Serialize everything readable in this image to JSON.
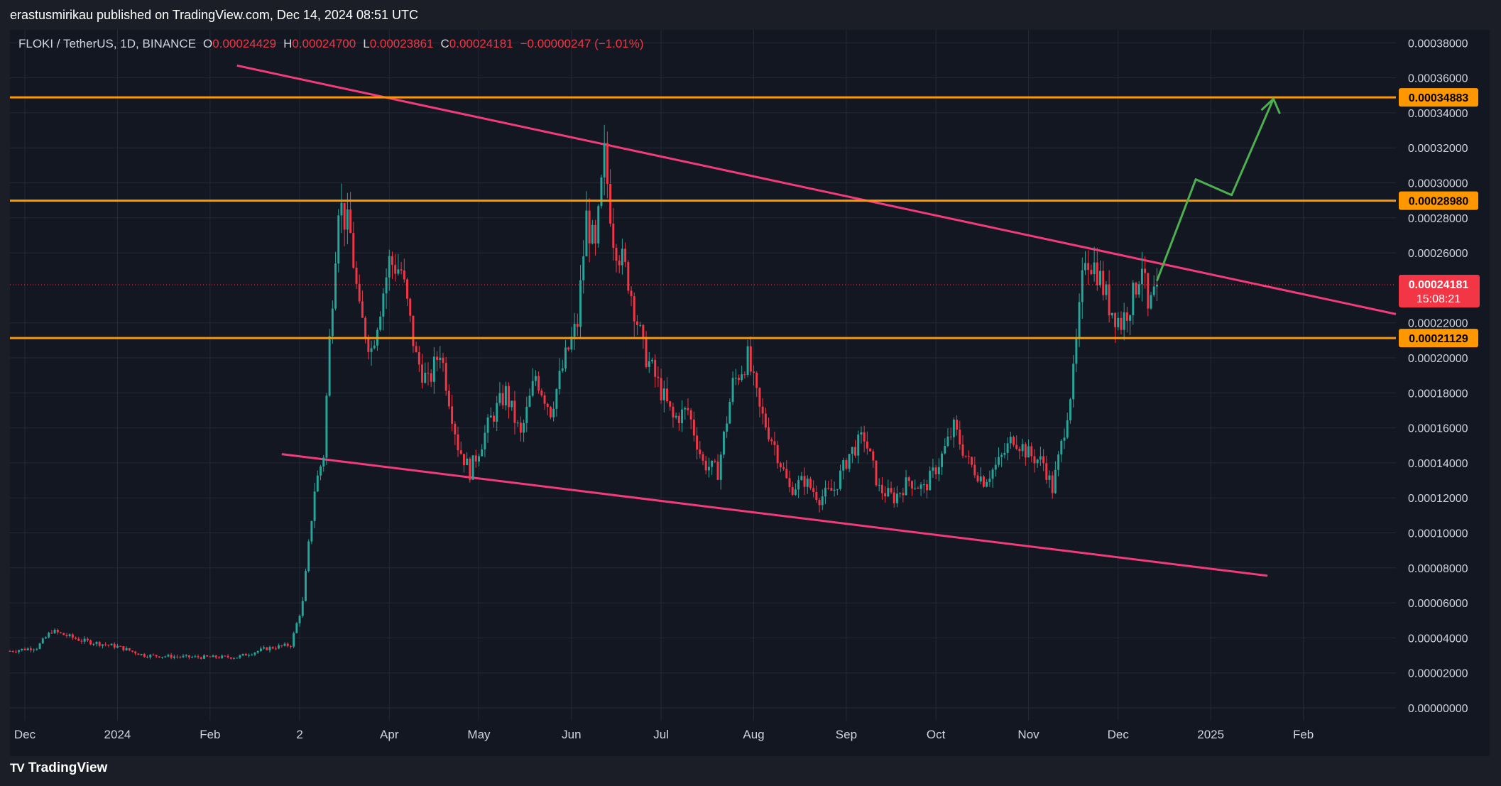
{
  "publisher_line": "erastusmirikau published on TradingView.com, Dec 14, 2024 08:51 UTC",
  "legend": {
    "symbol": "FLOKI / TetherUS, 1D, BINANCE",
    "open_label": "O",
    "open_value": "0.00024429",
    "high_label": "H",
    "high_value": "0.00024700",
    "low_label": "L",
    "low_value": "0.00023861",
    "close_label": "C",
    "close_value": "0.00024181",
    "change": "−0.00000247 (−1.01%)"
  },
  "footer": {
    "brand_mark": "TV",
    "brand_name": "TradingView"
  },
  "colors": {
    "background": "#131722",
    "frame": "#1b1e27",
    "grid": "#242936",
    "up": "#26a69a",
    "down": "#f23645",
    "trendline": "#f23b7a",
    "level": "#ff9800",
    "projection": "#4caf50",
    "axis_text": "#d1d4dc",
    "price_label_bg": "#f23645"
  },
  "chart_data": {
    "type": "candlestick",
    "title": "FLOKI / TetherUS, 1D, BINANCE",
    "y_axis": {
      "range": [
        0.0,
        0.00039
      ],
      "tick_labels": [
        "0.00038000",
        "0.00036000",
        "0.00034000",
        "0.00032000",
        "0.00030000",
        "0.00028000",
        "0.00026000",
        "0.00022000",
        "0.00020000",
        "0.00018000",
        "0.00016000",
        "0.00014000",
        "0.00012000",
        "0.00010000",
        "0.00008000",
        "0.00006000",
        "0.00004000",
        "0.00002000",
        "0.00000000"
      ],
      "tick_values": [
        0.00038,
        0.00036,
        0.00034,
        0.00032,
        0.0003,
        0.00028,
        0.00026,
        0.00022,
        0.0002,
        0.00018,
        0.00016,
        0.00014,
        0.00012,
        0.0001,
        8e-05,
        6e-05,
        4e-05,
        2e-05,
        0.0
      ]
    },
    "x_axis": {
      "range": [
        "2023-11-26",
        "2025-03-04"
      ],
      "ticks": [
        {
          "label": "Dec",
          "date": "2023-12-01"
        },
        {
          "label": "2024",
          "date": "2024-01-01"
        },
        {
          "label": "Feb",
          "date": "2024-02-01"
        },
        {
          "label": "2",
          "date": "2024-03-02"
        },
        {
          "label": "Apr",
          "date": "2024-04-01"
        },
        {
          "label": "May",
          "date": "2024-05-01"
        },
        {
          "label": "Jun",
          "date": "2024-06-01"
        },
        {
          "label": "Jul",
          "date": "2024-07-01"
        },
        {
          "label": "Aug",
          "date": "2024-08-01"
        },
        {
          "label": "Sep",
          "date": "2024-09-01"
        },
        {
          "label": "Oct",
          "date": "2024-10-01"
        },
        {
          "label": "Nov",
          "date": "2024-11-01"
        },
        {
          "label": "Dec",
          "date": "2024-12-01"
        },
        {
          "label": "2025",
          "date": "2025-01-01"
        },
        {
          "label": "Feb",
          "date": "2025-02-01"
        }
      ]
    },
    "grid": true,
    "price_path": [
      [
        "2023-11-26",
        3.25e-05
      ],
      [
        "2023-12-05",
        3.45e-05
      ],
      [
        "2023-12-10",
        4.4e-05
      ],
      [
        "2023-12-20",
        3.85e-05
      ],
      [
        "2024-01-01",
        3.5e-05
      ],
      [
        "2024-01-10",
        3e-05
      ],
      [
        "2024-01-25",
        2.9e-05
      ],
      [
        "2024-02-10",
        2.9e-05
      ],
      [
        "2024-02-20",
        3.4e-05
      ],
      [
        "2024-02-28",
        3.6e-05
      ],
      [
        "2024-03-03",
        6e-05
      ],
      [
        "2024-03-07",
        0.000125
      ],
      [
        "2024-03-10",
        0.000145
      ],
      [
        "2024-03-12",
        0.00021
      ],
      [
        "2024-03-15",
        0.00029
      ],
      [
        "2024-03-19",
        0.00027
      ],
      [
        "2024-03-22",
        0.000225
      ],
      [
        "2024-03-26",
        0.000205
      ],
      [
        "2024-04-01",
        0.000255
      ],
      [
        "2024-04-05",
        0.00025
      ],
      [
        "2024-04-10",
        0.0002
      ],
      [
        "2024-04-14",
        0.000185
      ],
      [
        "2024-04-18",
        0.000205
      ],
      [
        "2024-04-24",
        0.00015
      ],
      [
        "2024-04-28",
        0.000135
      ],
      [
        "2024-05-05",
        0.000165
      ],
      [
        "2024-05-10",
        0.00018
      ],
      [
        "2024-05-15",
        0.000155
      ],
      [
        "2024-05-20",
        0.00019
      ],
      [
        "2024-05-25",
        0.00017
      ],
      [
        "2024-05-30",
        0.0002
      ],
      [
        "2024-06-03",
        0.00022
      ],
      [
        "2024-06-06",
        0.00028
      ],
      [
        "2024-06-09",
        0.00026
      ],
      [
        "2024-06-12",
        0.000315
      ],
      [
        "2024-06-15",
        0.00027
      ],
      [
        "2024-06-20",
        0.000245
      ],
      [
        "2024-06-25",
        0.000205
      ],
      [
        "2024-06-30",
        0.000185
      ],
      [
        "2024-07-05",
        0.000165
      ],
      [
        "2024-07-10",
        0.00017
      ],
      [
        "2024-07-15",
        0.00014
      ],
      [
        "2024-07-20",
        0.000135
      ],
      [
        "2024-07-25",
        0.000185
      ],
      [
        "2024-07-30",
        0.0002
      ],
      [
        "2024-08-03",
        0.00017
      ],
      [
        "2024-08-08",
        0.00015
      ],
      [
        "2024-08-13",
        0.000125
      ],
      [
        "2024-08-18",
        0.00013
      ],
      [
        "2024-08-23",
        0.00012
      ],
      [
        "2024-08-28",
        0.000125
      ],
      [
        "2024-09-02",
        0.000145
      ],
      [
        "2024-09-07",
        0.000155
      ],
      [
        "2024-09-12",
        0.000125
      ],
      [
        "2024-09-17",
        0.00012
      ],
      [
        "2024-09-22",
        0.00013
      ],
      [
        "2024-09-27",
        0.000125
      ],
      [
        "2024-10-02",
        0.00014
      ],
      [
        "2024-10-07",
        0.00016
      ],
      [
        "2024-10-12",
        0.00014
      ],
      [
        "2024-10-17",
        0.00013
      ],
      [
        "2024-10-22",
        0.00014
      ],
      [
        "2024-10-27",
        0.000155
      ],
      [
        "2024-11-01",
        0.000145
      ],
      [
        "2024-11-06",
        0.00014
      ],
      [
        "2024-11-09",
        0.000125
      ],
      [
        "2024-11-12",
        0.00015
      ],
      [
        "2024-11-16",
        0.00019
      ],
      [
        "2024-11-20",
        0.00026
      ],
      [
        "2024-11-24",
        0.00025
      ],
      [
        "2024-11-28",
        0.00023
      ],
      [
        "2024-12-02",
        0.00022
      ],
      [
        "2024-12-06",
        0.000235
      ],
      [
        "2024-12-09",
        0.000255
      ],
      [
        "2024-12-11",
        0.000225
      ],
      [
        "2024-12-14",
        0.0002418
      ]
    ],
    "horizontal_levels": [
      {
        "label": "0.00034883",
        "value": 0.00034883
      },
      {
        "label": "0.00028980",
        "value": 0.0002898
      },
      {
        "label": "0.00021129",
        "value": 0.00021129
      }
    ],
    "last_price": {
      "label": "0.00024181",
      "countdown": "15:08:21",
      "value": 0.00024181
    },
    "trendlines": [
      {
        "name": "descending-resistance",
        "from": [
          "2024-02-10",
          0.000367
        ],
        "to": [
          "2025-03-04",
          0.000225
        ]
      },
      {
        "name": "descending-support",
        "from": [
          "2024-02-25",
          0.000145
        ],
        "to": [
          "2025-01-20",
          7.55e-05
        ]
      }
    ],
    "projection_path": [
      [
        "2024-12-14",
        0.000244
      ],
      [
        "2024-12-27",
        0.000302
      ],
      [
        "2025-01-08",
        0.000293
      ],
      [
        "2025-01-22",
        0.000348
      ]
    ]
  }
}
